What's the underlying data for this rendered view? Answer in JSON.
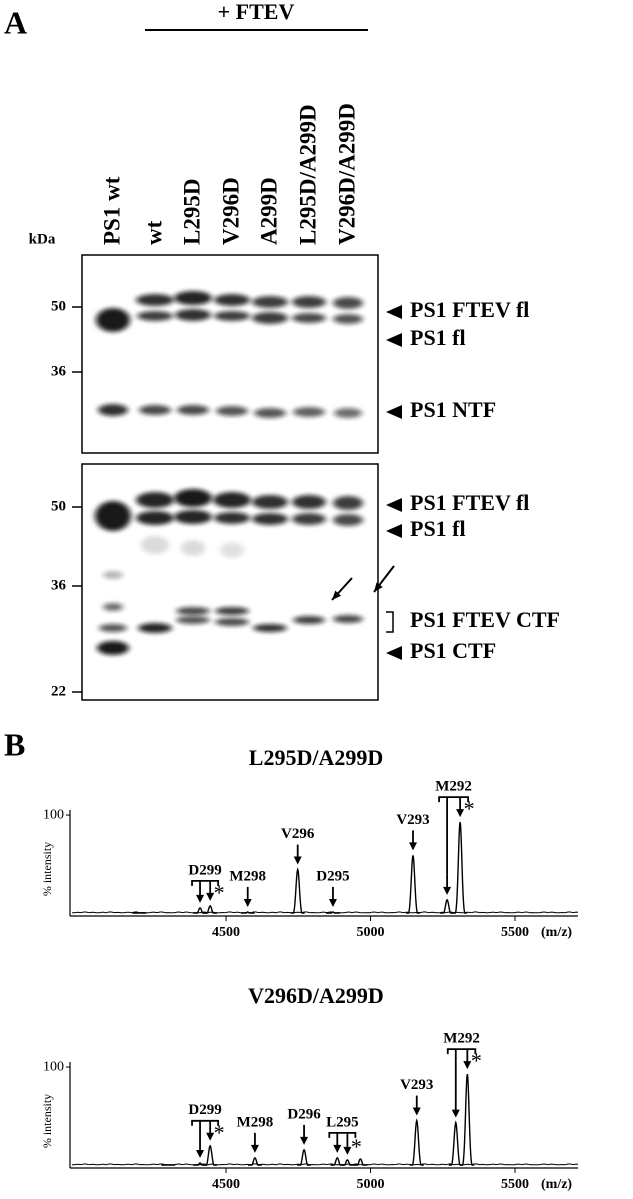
{
  "panel_a": {
    "label": "A",
    "treatment": "+ FTEV",
    "kda_label": "kDa",
    "lanes": [
      "PS1 wt",
      "wt",
      "L295D",
      "V296D",
      "A299D",
      "L295D/A299D",
      "V296D/A299D"
    ],
    "blots": [
      {
        "markers": [
          50,
          36
        ],
        "bands": [
          "PS1 FTEV fl",
          "PS1 fl",
          "PS1 NTF"
        ]
      },
      {
        "markers": [
          50,
          36,
          22
        ],
        "bands": [
          "PS1 FTEV fl",
          "PS1 fl",
          "PS1 FTEV CTF",
          "PS1 CTF"
        ]
      }
    ]
  },
  "panel_b": {
    "label": "B",
    "spectra": [
      {
        "title": "L295D/A299D",
        "ylabel": "% intensity",
        "xunit": "(m/z)",
        "xlim": [
          3960,
          5718
        ],
        "ylim": [
          0,
          105
        ],
        "xticks": [
          4500,
          5000,
          5500
        ],
        "yticks": [
          100
        ],
        "peaks": [
          {
            "mz": 4200,
            "intensity": 3
          },
          {
            "mz": 4410,
            "intensity": 8
          },
          {
            "mz": 4445,
            "intensity": 10
          },
          {
            "mz": 4575,
            "intensity": 4
          },
          {
            "mz": 4748,
            "intensity": 46
          },
          {
            "mz": 4870,
            "intensity": 4
          },
          {
            "mz": 5147,
            "intensity": 60
          },
          {
            "mz": 5265,
            "intensity": 16
          },
          {
            "mz": 5310,
            "intensity": 93
          }
        ],
        "annotations": [
          {
            "label": "D299",
            "mz": [
              4410,
              4445
            ],
            "star": "*"
          },
          {
            "label": "M298",
            "mz": [
              4575
            ]
          },
          {
            "label": "V296",
            "mz": [
              4748
            ]
          },
          {
            "label": "D295",
            "mz": [
              4870
            ]
          },
          {
            "label": "V293",
            "mz": [
              5147
            ]
          },
          {
            "label": "M292",
            "mz": [
              5265,
              5310
            ],
            "star": "*"
          }
        ]
      },
      {
        "title": "V296D/A299D",
        "ylabel": "% intensity",
        "xunit": "(m/z)",
        "xlim": [
          3960,
          5718
        ],
        "ylim": [
          0,
          105
        ],
        "xticks": [
          4500,
          5000,
          5500
        ],
        "yticks": [
          100
        ],
        "peaks": [
          {
            "mz": 4300,
            "intensity": 3
          },
          {
            "mz": 4410,
            "intensity": 5
          },
          {
            "mz": 4445,
            "intensity": 22
          },
          {
            "mz": 4600,
            "intensity": 10
          },
          {
            "mz": 4770,
            "intensity": 18
          },
          {
            "mz": 4885,
            "intensity": 10
          },
          {
            "mz": 4920,
            "intensity": 8
          },
          {
            "mz": 4965,
            "intensity": 9
          },
          {
            "mz": 5160,
            "intensity": 47
          },
          {
            "mz": 5295,
            "intensity": 45
          },
          {
            "mz": 5335,
            "intensity": 93
          }
        ],
        "annotations": [
          {
            "label": "D299",
            "mz": [
              4410,
              4445
            ],
            "star": "*"
          },
          {
            "label": "M298",
            "mz": [
              4600
            ]
          },
          {
            "label": "D296",
            "mz": [
              4770
            ]
          },
          {
            "label": "L295",
            "mz": [
              4885,
              4920
            ],
            "star": "*"
          },
          {
            "label": "V293",
            "mz": [
              5160
            ]
          },
          {
            "label": "M292",
            "mz": [
              5295,
              5335
            ],
            "star": "*"
          }
        ]
      }
    ]
  }
}
